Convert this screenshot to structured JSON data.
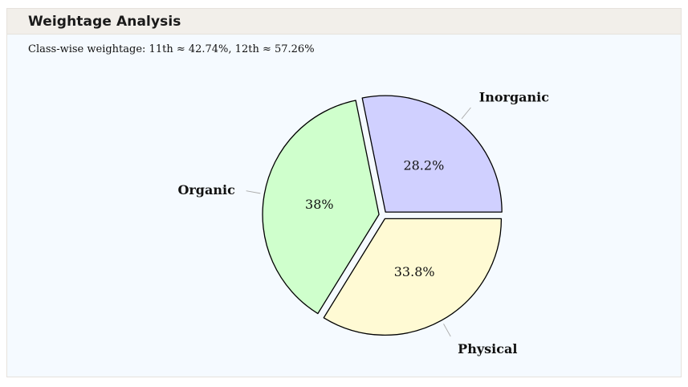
{
  "panel": {
    "title": "Weightage Analysis",
    "subtitle": "Class-wise weightage: 11th ≈ 42.74%, 12th ≈ 57.26%"
  },
  "chart_data": {
    "type": "pie",
    "title": "",
    "slices": [
      {
        "label": "Physical",
        "value": 33.8,
        "display": "33.8%",
        "color": "#fffad4"
      },
      {
        "label": "Organic",
        "value": 38.0,
        "display": "38%",
        "color": "#cfffcc"
      },
      {
        "label": "Inorganic",
        "value": 28.2,
        "display": "28.2%",
        "color": "#d0d0ff"
      }
    ],
    "exploded": true,
    "start_direction": "east",
    "legend": "none"
  }
}
